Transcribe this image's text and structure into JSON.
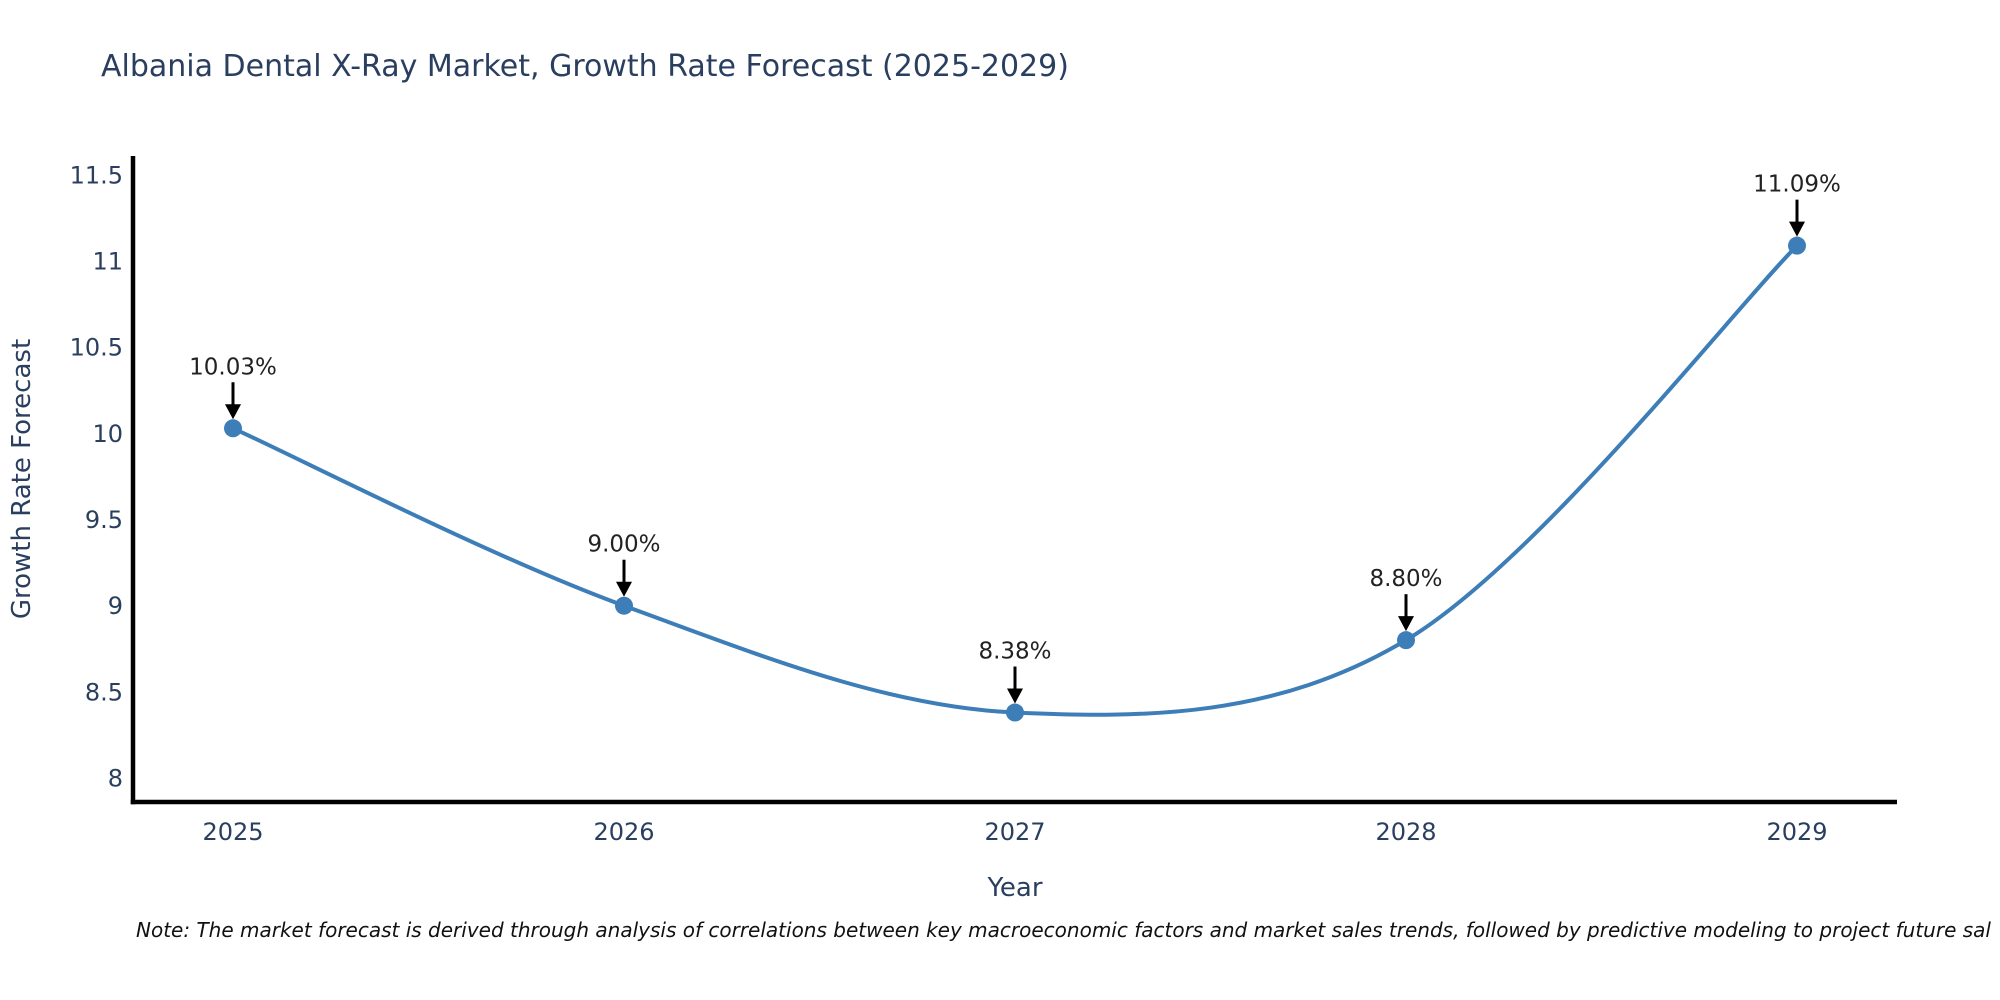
{
  "chart_data": {
    "type": "line",
    "title": "Albania Dental X-Ray Market, Growth Rate Forecast (2025-2029)",
    "xlabel": "Year",
    "ylabel": "Growth Rate Forecast",
    "x": [
      2025,
      2026,
      2027,
      2028,
      2029
    ],
    "series": [
      {
        "name": "Growth Rate Forecast",
        "values": [
          10.03,
          9.0,
          8.38,
          8.8,
          11.09
        ],
        "point_labels": [
          "10.03%",
          "9.00%",
          "8.38%",
          "8.80%",
          "11.09%"
        ]
      }
    ],
    "yticks": [
      8,
      8.5,
      9,
      9.5,
      10,
      10.5,
      11,
      11.5
    ],
    "ytick_labels": [
      "8",
      "8.5",
      "9",
      "9.5",
      "10",
      "10.5",
      "11",
      "11.5"
    ],
    "xtick_labels": [
      "2025",
      "2026",
      "2027",
      "2028",
      "2029"
    ],
    "ylim": [
      7.86,
      11.6
    ],
    "grid": false,
    "legend": "none",
    "line_shape": "spline",
    "colors": {
      "line": "#3d7eb8",
      "marker": "#3d7eb8",
      "axis": "#000000",
      "tick_text": "#2a3f5f",
      "title_text": "#2a3f5f",
      "annotation_text": "#222222",
      "arrow": "#000000",
      "background": "#ffffff"
    }
  },
  "note": "Note: The market forecast is derived through analysis of correlations between key macroeconomic factors and market sales trends, followed by predictive modeling to project future sal"
}
